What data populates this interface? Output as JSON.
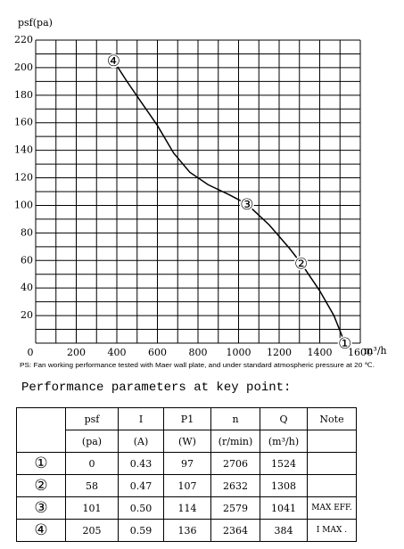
{
  "chart_data": {
    "type": "line",
    "y_label": "psf(pa)",
    "x_label": "m³/h",
    "x": [
      384,
      450,
      520,
      600,
      680,
      760,
      850,
      950,
      1041,
      1150,
      1250,
      1308,
      1400,
      1470,
      1524
    ],
    "series": [
      {
        "color": "#000000",
        "values": [
          205,
          190,
          175,
          158,
          138,
          124,
          115,
          108,
          101,
          86,
          69,
          58,
          38,
          20,
          0
        ]
      }
    ],
    "points": [
      {
        "label": "①",
        "x": 1524,
        "y": 0
      },
      {
        "label": "②",
        "x": 1308,
        "y": 58
      },
      {
        "label": "③",
        "x": 1041,
        "y": 101
      },
      {
        "label": "④",
        "x": 384,
        "y": 205
      }
    ],
    "xlim": [
      0,
      1600
    ],
    "ylim": [
      0,
      220
    ],
    "xticks": [
      0,
      200,
      400,
      600,
      800,
      1000,
      1200,
      1400,
      1600
    ],
    "yticks": [
      20,
      40,
      60,
      80,
      100,
      120,
      140,
      160,
      180,
      200,
      220
    ],
    "xgrid": [
      0,
      100,
      200,
      300,
      400,
      500,
      600,
      700,
      800,
      900,
      1000,
      1100,
      1200,
      1300,
      1400,
      1500,
      1600
    ],
    "ygrid": [
      0,
      10,
      20,
      30,
      40,
      50,
      60,
      70,
      80,
      90,
      100,
      110,
      120,
      130,
      140,
      150,
      160,
      170,
      180,
      190,
      200,
      210,
      220
    ],
    "note": "PS: Fan working performance tested with Maer wall plate, and under standard atmospheric pressure at 20 ℃."
  },
  "heading": "Performance parameters at key point:",
  "table": {
    "columns": [
      "psf",
      "I",
      "P1",
      "n",
      "Q",
      "Note"
    ],
    "units": [
      "(pa)",
      "(A)",
      "(W)",
      "(r/min)",
      "(m³/h)"
    ],
    "rows": [
      [
        "①",
        "0",
        "0.43",
        "97",
        "2706",
        "1524"
      ],
      [
        "②",
        "58",
        "0.47",
        "107",
        "2632",
        "1308"
      ],
      [
        "③",
        "101",
        "0.50",
        "114",
        "2579",
        "1041",
        "MAX EFF."
      ],
      [
        "④",
        "205",
        "0.59",
        "136",
        "2364",
        "384",
        "I MAX ."
      ]
    ]
  }
}
